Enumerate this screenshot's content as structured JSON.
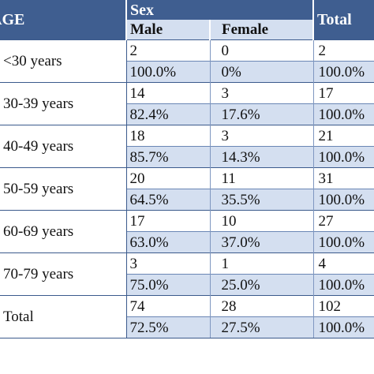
{
  "header": {
    "age_label": "AGE",
    "sex_label": "Sex",
    "male_label": "Male",
    "female_label": "Female",
    "total_label": "Total"
  },
  "rows": [
    {
      "age": "<30 years",
      "male_n": "2",
      "female_n": "0",
      "total_n": "2",
      "male_pct": "100.0%",
      "female_pct": "0%",
      "total_pct": "100.0%"
    },
    {
      "age": "30-39 years",
      "male_n": "14",
      "female_n": "3",
      "total_n": "17",
      "male_pct": "82.4%",
      "female_pct": "17.6%",
      "total_pct": "100.0%"
    },
    {
      "age": "40-49 years",
      "male_n": "18",
      "female_n": "3",
      "total_n": "21",
      "male_pct": "85.7%",
      "female_pct": "14.3%",
      "total_pct": "100.0%"
    },
    {
      "age": "50-59 years",
      "male_n": "20",
      "female_n": "11",
      "total_n": "31",
      "male_pct": "64.5%",
      "female_pct": "35.5%",
      "total_pct": "100.0%"
    },
    {
      "age": "60-69 years",
      "male_n": "17",
      "female_n": "10",
      "total_n": "27",
      "male_pct": "63.0%",
      "female_pct": "37.0%",
      "total_pct": "100.0%"
    },
    {
      "age": "70-79 years",
      "male_n": "3",
      "female_n": "1",
      "total_n": "4",
      "male_pct": "75.0%",
      "female_pct": "25.0%",
      "total_pct": "100.0%"
    },
    {
      "age": "Total",
      "male_n": "74",
      "female_n": "28",
      "total_n": "102",
      "male_pct": "72.5%",
      "female_pct": "27.5%",
      "total_pct": "100.0%"
    }
  ],
  "colors": {
    "header_dark": "#3f5e90",
    "header_light": "#d4dff0",
    "percent_row": "#d4dff0",
    "rule": "#3b5a8c"
  }
}
